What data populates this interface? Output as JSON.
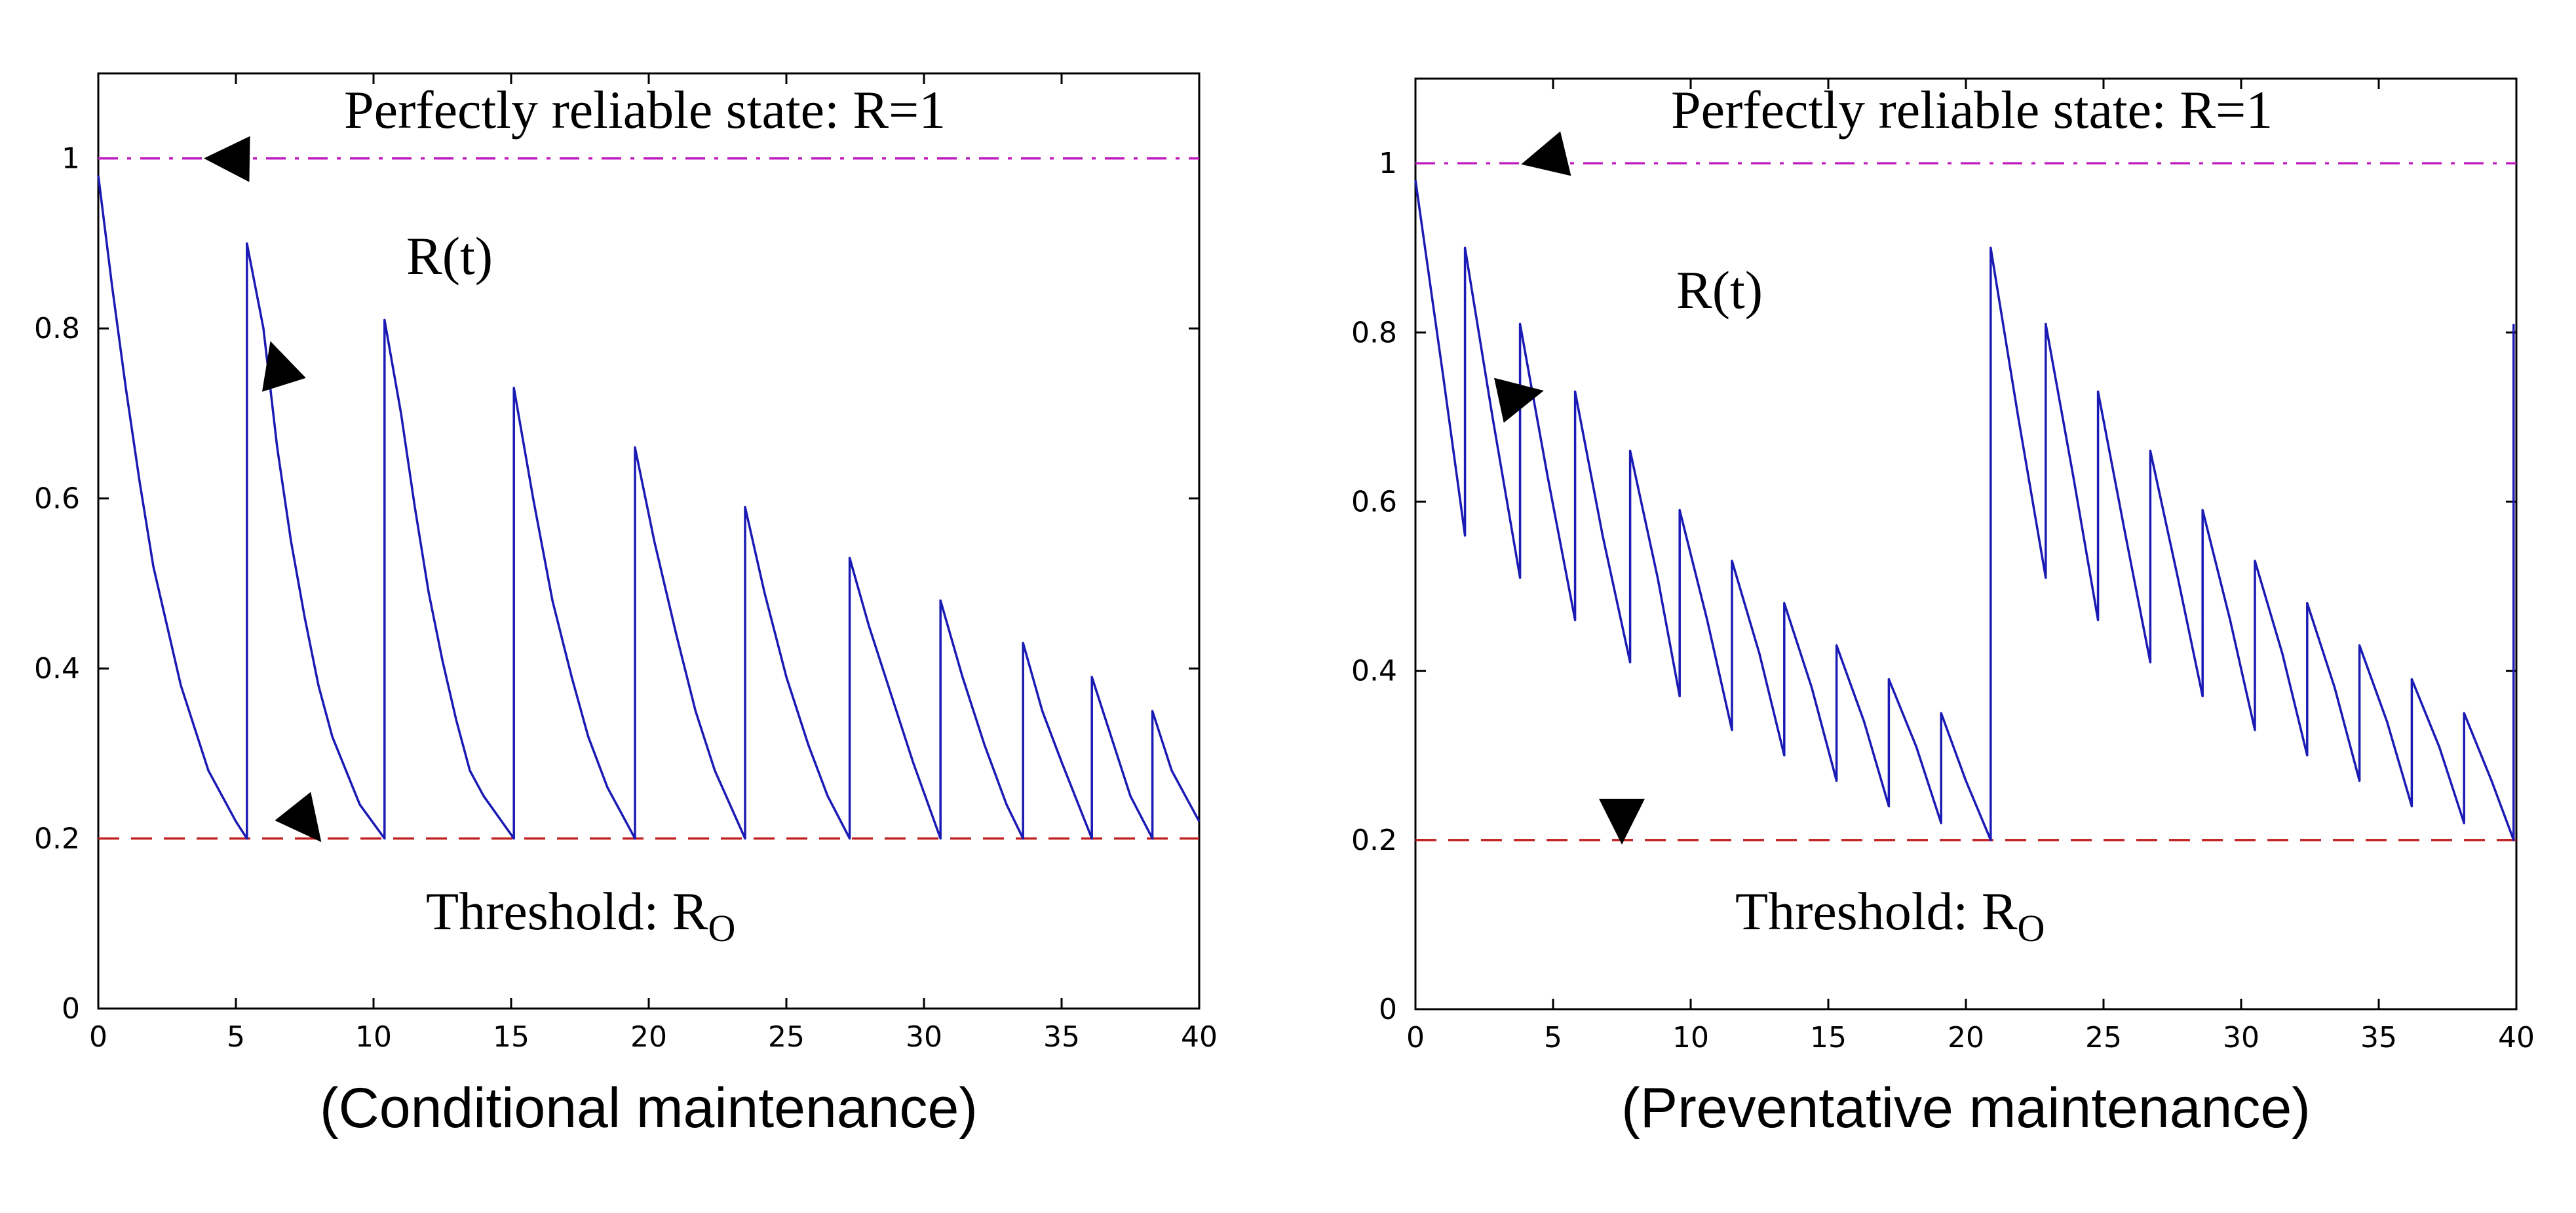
{
  "chart_data": [
    {
      "type": "line",
      "caption": "(Conditional maintenance)",
      "xlim": [
        0,
        40
      ],
      "ylim": [
        0,
        1.1
      ],
      "xticks": [
        0,
        5,
        10,
        15,
        20,
        25,
        30,
        35,
        40
      ],
      "yticks": [
        0,
        0.2,
        0.4,
        0.6,
        0.8,
        1
      ],
      "ytick_labels": [
        "0",
        "0.2",
        "0.4",
        "0.6",
        "0.8",
        "1"
      ],
      "grid": false,
      "series": [
        {
          "name": "R(t)",
          "color": "#1a1ab4",
          "x": [
            0,
            0.5,
            1,
            1.5,
            2,
            2.5,
            3,
            3.5,
            4,
            4.5,
            5,
            5.4,
            5.4,
            6,
            6.5,
            7,
            7.5,
            8,
            8.5,
            9,
            9.5,
            10.4,
            10.4,
            11,
            11.5,
            12,
            12.5,
            13,
            13.5,
            14,
            15.1,
            15.1,
            15.8,
            16.5,
            17.2,
            17.8,
            18.5,
            19.5,
            19.5,
            20.2,
            21,
            21.7,
            22.4,
            23.5,
            23.5,
            24.2,
            25,
            25.8,
            26.5,
            27.3,
            27.3,
            28,
            28.8,
            29.6,
            30.6,
            30.6,
            31.4,
            32.2,
            33,
            33.6,
            33.6,
            34.3,
            35,
            36.1,
            36.1,
            36.8,
            37.5,
            38.3,
            38.3,
            39,
            40
          ],
          "y": [
            0.98,
            0.85,
            0.73,
            0.62,
            0.52,
            0.45,
            0.38,
            0.33,
            0.28,
            0.25,
            0.22,
            0.2,
            0.9,
            0.8,
            0.66,
            0.55,
            0.46,
            0.38,
            0.32,
            0.28,
            0.24,
            0.2,
            0.81,
            0.7,
            0.59,
            0.49,
            0.41,
            0.34,
            0.28,
            0.25,
            0.2,
            0.73,
            0.6,
            0.48,
            0.39,
            0.32,
            0.26,
            0.2,
            0.66,
            0.55,
            0.44,
            0.35,
            0.28,
            0.2,
            0.59,
            0.49,
            0.39,
            0.31,
            0.25,
            0.2,
            0.53,
            0.45,
            0.37,
            0.29,
            0.2,
            0.48,
            0.39,
            0.31,
            0.24,
            0.2,
            0.43,
            0.35,
            0.29,
            0.2,
            0.39,
            0.32,
            0.25,
            0.2,
            0.35,
            0.28,
            0.22
          ]
        }
      ],
      "reference_lines": [
        {
          "y": 1,
          "color": "#c020c0",
          "style": "dashdot"
        },
        {
          "y": 0.2,
          "color": "#c02020",
          "style": "dashed"
        }
      ],
      "annotations": [
        {
          "text": "Perfectly reliable state: R=1",
          "points_to": [
            4,
            1
          ]
        },
        {
          "text": "R(t)",
          "points_to": [
            6.3,
            0.78
          ]
        },
        {
          "text_main": "Threshold: R",
          "text_sub": "O",
          "points_to": [
            8,
            0.2
          ]
        }
      ]
    },
    {
      "type": "line",
      "caption": "(Preventative maintenance)",
      "xlim": [
        0,
        40
      ],
      "ylim": [
        0,
        1.1
      ],
      "xticks": [
        0,
        5,
        10,
        15,
        20,
        25,
        30,
        35,
        40
      ],
      "yticks": [
        0,
        0.2,
        0.4,
        0.6,
        0.8,
        1
      ],
      "ytick_labels": [
        "0",
        "0.2",
        "0.4",
        "0.6",
        "0.8",
        "1"
      ],
      "grid": false,
      "series": [
        {
          "name": "R(t)",
          "color": "#1a1ab4",
          "x": [
            0,
            1,
            1.8,
            1.8,
            2.8,
            3.8,
            3.8,
            4.8,
            5.8,
            5.8,
            6.8,
            7.8,
            7.8,
            8.8,
            9.6,
            9.6,
            10.6,
            11.5,
            11.5,
            12.5,
            13.4,
            13.4,
            14.4,
            15.3,
            15.3,
            16.3,
            17.2,
            17.2,
            18.2,
            19.1,
            19.1,
            20,
            20.9,
            20.9,
            21.9,
            22.9,
            22.9,
            23.9,
            24.8,
            24.8,
            25.8,
            26.7,
            26.7,
            27.7,
            28.6,
            28.6,
            29.6,
            30.5,
            30.5,
            31.5,
            32.4,
            32.4,
            33.4,
            34.3,
            34.3,
            35.3,
            36.2,
            36.2,
            37.2,
            38.1,
            38.1,
            39.1,
            39.9,
            39.9
          ],
          "y": [
            0.98,
            0.75,
            0.56,
            0.9,
            0.7,
            0.51,
            0.81,
            0.63,
            0.46,
            0.73,
            0.56,
            0.41,
            0.66,
            0.51,
            0.37,
            0.59,
            0.46,
            0.33,
            0.53,
            0.42,
            0.3,
            0.48,
            0.38,
            0.27,
            0.43,
            0.34,
            0.24,
            0.39,
            0.31,
            0.22,
            0.35,
            0.27,
            0.2,
            0.9,
            0.7,
            0.51,
            0.81,
            0.63,
            0.46,
            0.73,
            0.56,
            0.41,
            0.66,
            0.51,
            0.37,
            0.59,
            0.46,
            0.33,
            0.53,
            0.42,
            0.3,
            0.48,
            0.38,
            0.27,
            0.43,
            0.34,
            0.24,
            0.39,
            0.31,
            0.22,
            0.35,
            0.27,
            0.2,
            0.81
          ]
        }
      ],
      "reference_lines": [
        {
          "y": 1,
          "color": "#c020c0",
          "style": "dashdot"
        },
        {
          "y": 0.2,
          "color": "#c02020",
          "style": "dashed"
        }
      ],
      "annotations": [
        {
          "text": "Perfectly reliable state: R=1",
          "points_to": [
            4,
            1
          ]
        },
        {
          "text": "R(t)",
          "points_to": [
            4.5,
            0.73
          ]
        },
        {
          "text_main": "Threshold: R",
          "text_sub": "O",
          "points_to": [
            7.5,
            0.2
          ]
        }
      ]
    }
  ]
}
